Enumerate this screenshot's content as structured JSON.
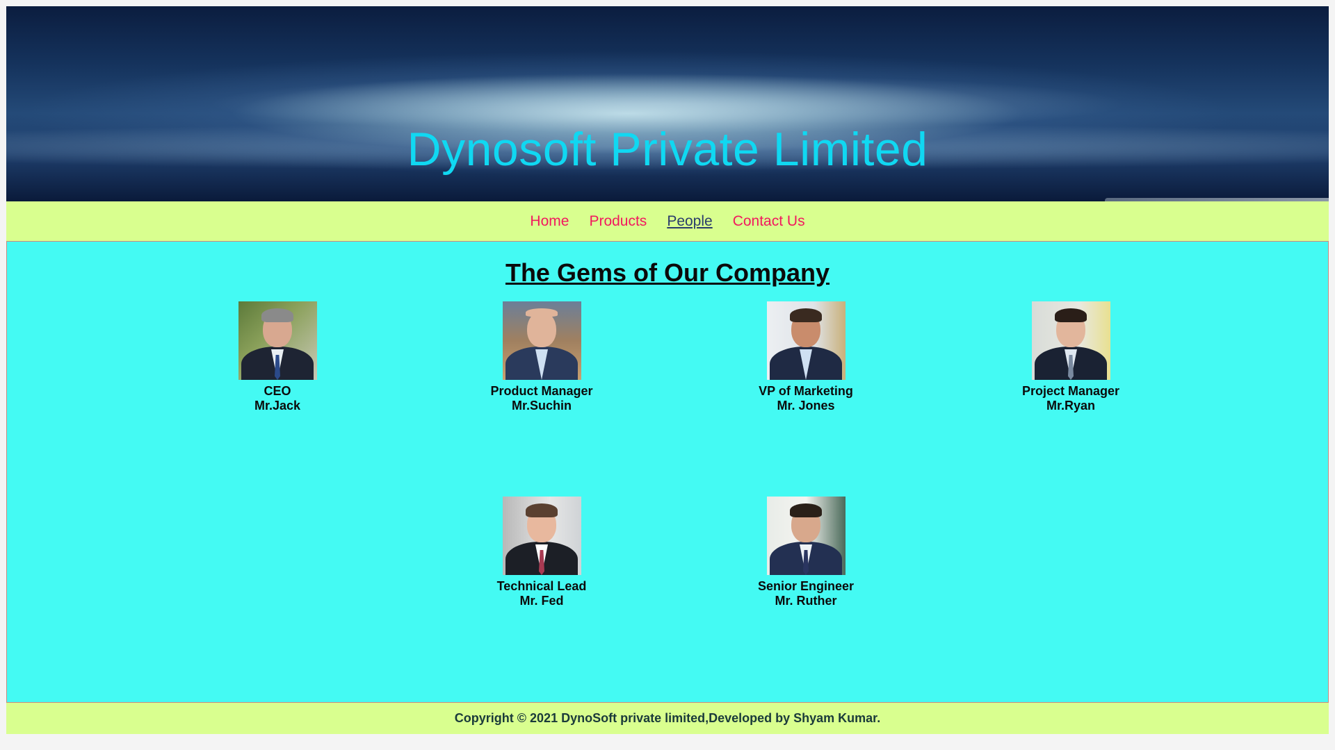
{
  "banner": {
    "title": "Dynosoft Private Limited"
  },
  "nav": {
    "items": [
      {
        "label": "Home",
        "active": false
      },
      {
        "label": "Products",
        "active": false
      },
      {
        "label": "People",
        "active": true
      },
      {
        "label": "Contact Us",
        "active": false
      }
    ]
  },
  "main": {
    "heading": "The Gems of Our Company",
    "people": [
      {
        "role": "CEO",
        "name": "Mr.Jack"
      },
      {
        "role": "Product Manager",
        "name": "Mr.Suchin"
      },
      {
        "role": "VP of Marketing",
        "name": "Mr. Jones"
      },
      {
        "role": "Project Manager",
        "name": "Mr.Ryan"
      },
      {
        "role": "Technical Lead",
        "name": "Mr. Fed"
      },
      {
        "role": "Senior Engineer",
        "name": "Mr. Ruther"
      }
    ]
  },
  "footer": {
    "text": "Copyright © 2021 DynoSoft private limited,Developed by Shyam Kumar."
  },
  "colors": {
    "title": "#10d8f2",
    "nav_bg": "#d9ff8f",
    "nav_link": "#f2185e",
    "nav_active": "#2a3b6b",
    "main_bg": "#44faf3"
  }
}
